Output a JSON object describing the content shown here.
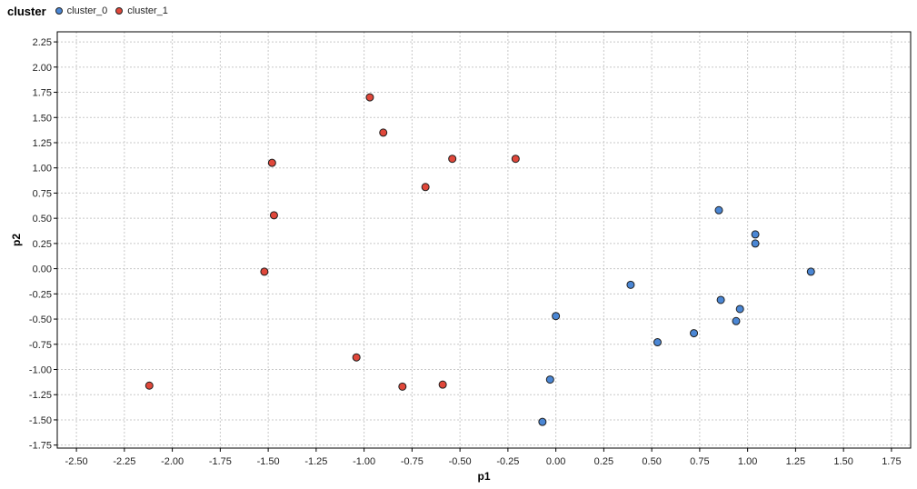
{
  "legend": {
    "title": "cluster",
    "items": [
      {
        "label": "cluster_0",
        "color": "#4a86d4"
      },
      {
        "label": "cluster_1",
        "color": "#e0473a"
      }
    ]
  },
  "chart_data": {
    "type": "scatter",
    "xlabel": "p1",
    "ylabel": "p2",
    "xlim": [
      -2.6,
      1.85
    ],
    "ylim": [
      -1.78,
      2.35
    ],
    "xticks": [
      "-2.50",
      "-2.25",
      "-2.00",
      "-1.75",
      "-1.50",
      "-1.25",
      "-1.00",
      "-0.75",
      "-0.50",
      "-0.25",
      "0.00",
      "0.25",
      "0.50",
      "0.75",
      "1.00",
      "1.25",
      "1.50",
      "1.75"
    ],
    "yticks": [
      "2.25",
      "2.00",
      "1.75",
      "1.50",
      "1.25",
      "1.00",
      "0.75",
      "0.50",
      "0.25",
      "0.00",
      "-0.25",
      "-0.50",
      "-0.75",
      "-1.00",
      "-1.25",
      "-1.50",
      "-1.75"
    ],
    "grid": true,
    "legend_position": "top-left",
    "series": [
      {
        "name": "cluster_0",
        "color": "#4a86d4",
        "points": [
          {
            "x": 0.85,
            "y": 0.58
          },
          {
            "x": 1.04,
            "y": 0.34
          },
          {
            "x": 1.04,
            "y": 0.25
          },
          {
            "x": 1.33,
            "y": -0.03
          },
          {
            "x": 0.39,
            "y": -0.16
          },
          {
            "x": 0.86,
            "y": -0.31
          },
          {
            "x": 0.96,
            "y": -0.4
          },
          {
            "x": 0.94,
            "y": -0.52
          },
          {
            "x": 0.0,
            "y": -0.47
          },
          {
            "x": 0.72,
            "y": -0.64
          },
          {
            "x": 0.53,
            "y": -0.73
          },
          {
            "x": -0.03,
            "y": -1.1
          },
          {
            "x": -0.07,
            "y": -1.52
          }
        ]
      },
      {
        "name": "cluster_1",
        "color": "#e0473a",
        "points": [
          {
            "x": -0.97,
            "y": 1.7
          },
          {
            "x": -0.9,
            "y": 1.35
          },
          {
            "x": -1.48,
            "y": 1.05
          },
          {
            "x": -0.54,
            "y": 1.09
          },
          {
            "x": -0.21,
            "y": 1.09
          },
          {
            "x": -0.68,
            "y": 0.81
          },
          {
            "x": -1.47,
            "y": 0.53
          },
          {
            "x": -1.52,
            "y": -0.03
          },
          {
            "x": -1.04,
            "y": -0.88
          },
          {
            "x": -0.8,
            "y": -1.17
          },
          {
            "x": -0.59,
            "y": -1.15
          },
          {
            "x": -2.12,
            "y": -1.16
          }
        ]
      }
    ]
  }
}
